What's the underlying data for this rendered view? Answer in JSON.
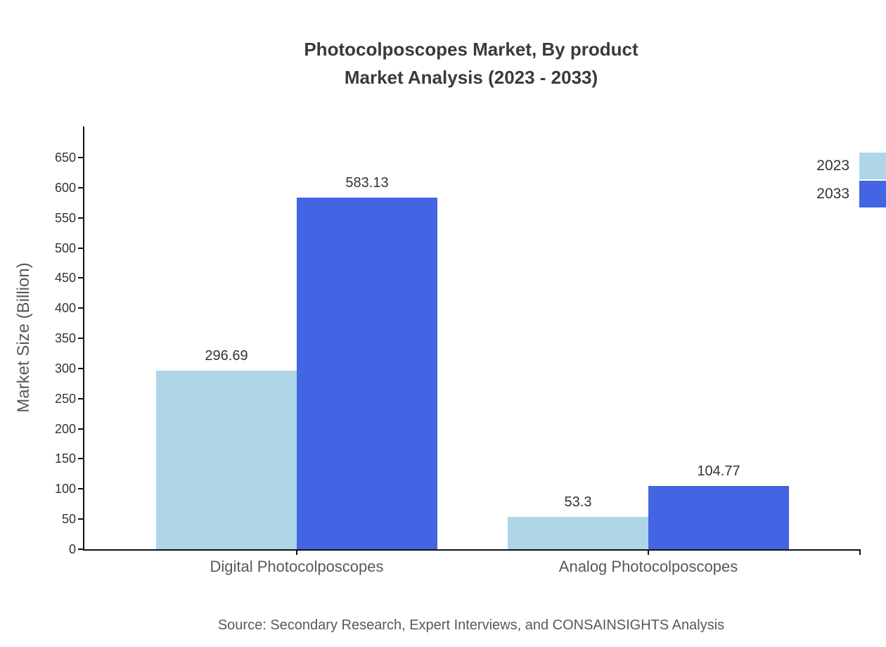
{
  "title": {
    "line1": "Photocolposcopes Market, By product",
    "line2": "Market Analysis (2023 - 2033)"
  },
  "chart_data": {
    "type": "bar",
    "categories": [
      "Digital Photocolposcopes",
      "Analog Photocolposcopes"
    ],
    "series": [
      {
        "name": "2023",
        "color": "#aed6e8",
        "values": [
          296.69,
          53.3
        ]
      },
      {
        "name": "2033",
        "color": "#4365e3",
        "values": [
          583.13,
          104.77
        ]
      }
    ],
    "title": "Photocolposcopes Market, By product Market Analysis (2023 - 2033)",
    "xlabel": "",
    "ylabel": "Market Size (Billion)",
    "ylim": [
      0,
      650
    ],
    "ytick_step": 50,
    "grid": false,
    "legend_position": "top-right"
  },
  "source": "Source: Secondary Research, Expert Interviews, and CONSAINSIGHTS Analysis"
}
